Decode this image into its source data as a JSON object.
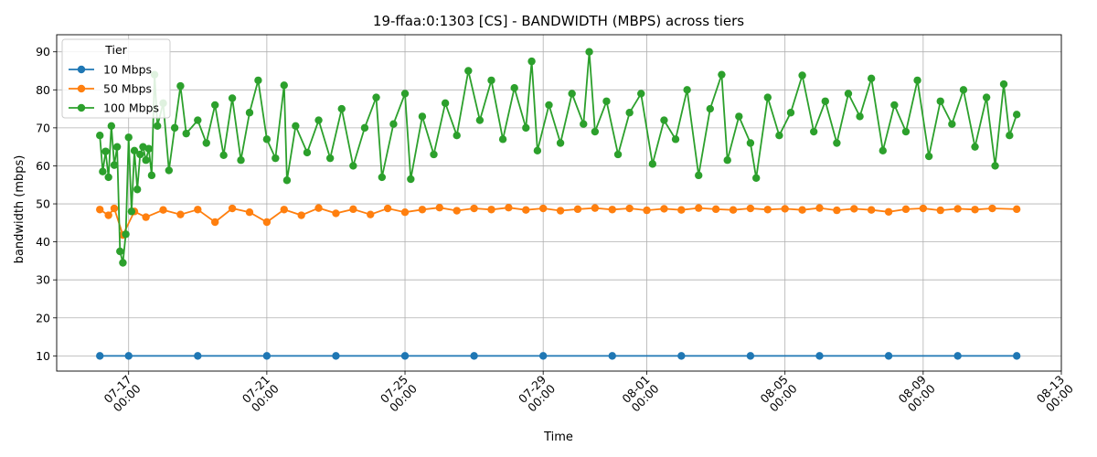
{
  "chart_data": {
    "type": "line",
    "title": "19-ffaa:0:1303 [CS] - BANDWIDTH (MBPS) across tiers",
    "xlabel": "Time",
    "ylabel": "bandwidth (mbps)",
    "ylim": [
      6.0,
      94.5
    ],
    "xlim": [
      "2025-07-14T22:00",
      "2025-08-13T00:00"
    ],
    "y_ticks": [
      10,
      20,
      30,
      40,
      50,
      60,
      70,
      80,
      90
    ],
    "x_ticks": [
      {
        "date": "2025-07-17T00:00",
        "line1": "07-17",
        "line2": "00:00"
      },
      {
        "date": "2025-07-21T00:00",
        "line1": "07-21",
        "line2": "00:00"
      },
      {
        "date": "2025-07-25T00:00",
        "line1": "07-25",
        "line2": "00:00"
      },
      {
        "date": "2025-07-29T00:00",
        "line1": "07-29",
        "line2": "00:00"
      },
      {
        "date": "2025-08-01T00:00",
        "line1": "08-01",
        "line2": "00:00"
      },
      {
        "date": "2025-08-05T00:00",
        "line1": "08-05",
        "line2": "00:00"
      },
      {
        "date": "2025-08-09T00:00",
        "line1": "08-09",
        "line2": "00:00"
      },
      {
        "date": "2025-08-13T00:00",
        "line1": "08-13",
        "line2": "00:00"
      }
    ],
    "grid": true,
    "legend": {
      "title": "Tier",
      "position": "top-left"
    },
    "series": [
      {
        "name": "10 Mbps",
        "color": "#1f77b4",
        "points": [
          [
            "2025-07-16T04:00",
            10.0
          ],
          [
            "2025-07-17T00:00",
            10.0
          ],
          [
            "2025-07-19T00:00",
            10.0
          ],
          [
            "2025-07-21T00:00",
            10.0
          ],
          [
            "2025-07-23T00:00",
            10.0
          ],
          [
            "2025-07-25T00:00",
            10.0
          ],
          [
            "2025-07-27T00:00",
            10.0
          ],
          [
            "2025-07-29T00:00",
            10.0
          ],
          [
            "2025-07-31T00:00",
            10.0
          ],
          [
            "2025-08-02T00:00",
            10.0
          ],
          [
            "2025-08-04T00:00",
            10.0
          ],
          [
            "2025-08-06T00:00",
            10.0
          ],
          [
            "2025-08-08T00:00",
            10.0
          ],
          [
            "2025-08-10T00:00",
            10.0
          ],
          [
            "2025-08-11T17:00",
            10.0
          ]
        ]
      },
      {
        "name": "50 Mbps",
        "color": "#ff7f0e",
        "points": [
          [
            "2025-07-16T04:00",
            48.5
          ],
          [
            "2025-07-16T10:00",
            47.0
          ],
          [
            "2025-07-16T14:00",
            48.8
          ],
          [
            "2025-07-16T20:00",
            41.8
          ],
          [
            "2025-07-17T04:00",
            48.0
          ],
          [
            "2025-07-17T12:00",
            46.5
          ],
          [
            "2025-07-18T00:00",
            48.4
          ],
          [
            "2025-07-18T12:00",
            47.2
          ],
          [
            "2025-07-19T00:00",
            48.5
          ],
          [
            "2025-07-19T12:00",
            45.2
          ],
          [
            "2025-07-20T00:00",
            48.8
          ],
          [
            "2025-07-20T12:00",
            47.8
          ],
          [
            "2025-07-21T00:00",
            45.2
          ],
          [
            "2025-07-21T12:00",
            48.5
          ],
          [
            "2025-07-22T00:00",
            47.0
          ],
          [
            "2025-07-22T12:00",
            48.9
          ],
          [
            "2025-07-23T00:00",
            47.5
          ],
          [
            "2025-07-23T12:00",
            48.6
          ],
          [
            "2025-07-24T00:00",
            47.2
          ],
          [
            "2025-07-24T12:00",
            48.8
          ],
          [
            "2025-07-25T00:00",
            47.8
          ],
          [
            "2025-07-25T12:00",
            48.5
          ],
          [
            "2025-07-26T00:00",
            49.0
          ],
          [
            "2025-07-26T12:00",
            48.2
          ],
          [
            "2025-07-27T00:00",
            48.8
          ],
          [
            "2025-07-27T12:00",
            48.5
          ],
          [
            "2025-07-28T00:00",
            49.0
          ],
          [
            "2025-07-28T12:00",
            48.4
          ],
          [
            "2025-07-29T00:00",
            48.8
          ],
          [
            "2025-07-29T12:00",
            48.2
          ],
          [
            "2025-07-30T00:00",
            48.6
          ],
          [
            "2025-07-30T12:00",
            48.9
          ],
          [
            "2025-07-31T00:00",
            48.5
          ],
          [
            "2025-07-31T12:00",
            48.8
          ],
          [
            "2025-08-01T00:00",
            48.3
          ],
          [
            "2025-08-01T12:00",
            48.7
          ],
          [
            "2025-08-02T00:00",
            48.4
          ],
          [
            "2025-08-02T12:00",
            48.9
          ],
          [
            "2025-08-03T00:00",
            48.6
          ],
          [
            "2025-08-03T12:00",
            48.4
          ],
          [
            "2025-08-04T00:00",
            48.8
          ],
          [
            "2025-08-04T12:00",
            48.5
          ],
          [
            "2025-08-05T00:00",
            48.7
          ],
          [
            "2025-08-05T12:00",
            48.4
          ],
          [
            "2025-08-06T00:00",
            48.9
          ],
          [
            "2025-08-06T12:00",
            48.3
          ],
          [
            "2025-08-07T00:00",
            48.7
          ],
          [
            "2025-08-07T12:00",
            48.4
          ],
          [
            "2025-08-08T00:00",
            47.9
          ],
          [
            "2025-08-08T12:00",
            48.6
          ],
          [
            "2025-08-09T00:00",
            48.8
          ],
          [
            "2025-08-09T12:00",
            48.3
          ],
          [
            "2025-08-10T00:00",
            48.7
          ],
          [
            "2025-08-10T12:00",
            48.5
          ],
          [
            "2025-08-11T00:00",
            48.8
          ],
          [
            "2025-08-11T17:00",
            48.6
          ]
        ]
      },
      {
        "name": "100 Mbps",
        "color": "#2ca02c",
        "points": [
          [
            "2025-07-16T04:00",
            68.0
          ],
          [
            "2025-07-16T06:00",
            58.5
          ],
          [
            "2025-07-16T08:00",
            63.8
          ],
          [
            "2025-07-16T10:00",
            57.0
          ],
          [
            "2025-07-16T12:00",
            70.5
          ],
          [
            "2025-07-16T14:00",
            60.2
          ],
          [
            "2025-07-16T16:00",
            65.0
          ],
          [
            "2025-07-16T18:00",
            37.5
          ],
          [
            "2025-07-16T20:00",
            34.5
          ],
          [
            "2025-07-16T22:00",
            42.0
          ],
          [
            "2025-07-17T00:00",
            67.5
          ],
          [
            "2025-07-17T02:00",
            48.0
          ],
          [
            "2025-07-17T04:00",
            64.0
          ],
          [
            "2025-07-17T06:00",
            53.8
          ],
          [
            "2025-07-17T08:00",
            63.0
          ],
          [
            "2025-07-17T10:00",
            65.0
          ],
          [
            "2025-07-17T12:00",
            61.5
          ],
          [
            "2025-07-17T14:00",
            64.5
          ],
          [
            "2025-07-17T16:00",
            57.5
          ],
          [
            "2025-07-17T18:00",
            84.0
          ],
          [
            "2025-07-17T20:00",
            70.5
          ],
          [
            "2025-07-18T00:00",
            76.5
          ],
          [
            "2025-07-18T04:00",
            58.8
          ],
          [
            "2025-07-18T08:00",
            70.0
          ],
          [
            "2025-07-18T12:00",
            81.0
          ],
          [
            "2025-07-18T16:00",
            68.5
          ],
          [
            "2025-07-19T00:00",
            72.0
          ],
          [
            "2025-07-19T06:00",
            66.0
          ],
          [
            "2025-07-19T12:00",
            76.0
          ],
          [
            "2025-07-19T18:00",
            62.8
          ],
          [
            "2025-07-20T00:00",
            77.8
          ],
          [
            "2025-07-20T06:00",
            61.5
          ],
          [
            "2025-07-20T12:00",
            74.0
          ],
          [
            "2025-07-20T18:00",
            82.5
          ],
          [
            "2025-07-21T00:00",
            67.0
          ],
          [
            "2025-07-21T06:00",
            62.0
          ],
          [
            "2025-07-21T12:00",
            81.2
          ],
          [
            "2025-07-21T14:00",
            56.2
          ],
          [
            "2025-07-21T20:00",
            70.5
          ],
          [
            "2025-07-22T04:00",
            63.5
          ],
          [
            "2025-07-22T12:00",
            72.0
          ],
          [
            "2025-07-22T20:00",
            62.0
          ],
          [
            "2025-07-23T04:00",
            75.0
          ],
          [
            "2025-07-23T12:00",
            60.0
          ],
          [
            "2025-07-23T20:00",
            70.0
          ],
          [
            "2025-07-24T04:00",
            78.0
          ],
          [
            "2025-07-24T08:00",
            57.0
          ],
          [
            "2025-07-24T16:00",
            71.0
          ],
          [
            "2025-07-25T00:00",
            79.0
          ],
          [
            "2025-07-25T04:00",
            56.5
          ],
          [
            "2025-07-25T12:00",
            73.0
          ],
          [
            "2025-07-25T20:00",
            63.0
          ],
          [
            "2025-07-26T04:00",
            76.5
          ],
          [
            "2025-07-26T12:00",
            68.0
          ],
          [
            "2025-07-26T20:00",
            85.0
          ],
          [
            "2025-07-27T04:00",
            72.0
          ],
          [
            "2025-07-27T12:00",
            82.5
          ],
          [
            "2025-07-27T20:00",
            67.0
          ],
          [
            "2025-07-28T04:00",
            80.5
          ],
          [
            "2025-07-28T12:00",
            70.0
          ],
          [
            "2025-07-28T16:00",
            87.5
          ],
          [
            "2025-07-28T20:00",
            64.0
          ],
          [
            "2025-07-29T04:00",
            76.0
          ],
          [
            "2025-07-29T12:00",
            66.0
          ],
          [
            "2025-07-29T20:00",
            79.0
          ],
          [
            "2025-07-30T04:00",
            71.0
          ],
          [
            "2025-07-30T08:00",
            90.0
          ],
          [
            "2025-07-30T12:00",
            69.0
          ],
          [
            "2025-07-30T20:00",
            77.0
          ],
          [
            "2025-07-31T04:00",
            63.0
          ],
          [
            "2025-07-31T12:00",
            74.0
          ],
          [
            "2025-07-31T20:00",
            79.0
          ],
          [
            "2025-08-01T04:00",
            60.5
          ],
          [
            "2025-08-01T12:00",
            72.0
          ],
          [
            "2025-08-01T20:00",
            67.0
          ],
          [
            "2025-08-02T04:00",
            80.0
          ],
          [
            "2025-08-02T12:00",
            57.5
          ],
          [
            "2025-08-02T20:00",
            75.0
          ],
          [
            "2025-08-03T04:00",
            84.0
          ],
          [
            "2025-08-03T08:00",
            61.5
          ],
          [
            "2025-08-03T16:00",
            73.0
          ],
          [
            "2025-08-04T00:00",
            66.0
          ],
          [
            "2025-08-04T04:00",
            56.8
          ],
          [
            "2025-08-04T12:00",
            78.0
          ],
          [
            "2025-08-04T20:00",
            68.0
          ],
          [
            "2025-08-05T04:00",
            74.0
          ],
          [
            "2025-08-05T12:00",
            83.8
          ],
          [
            "2025-08-05T20:00",
            69.0
          ],
          [
            "2025-08-06T04:00",
            77.0
          ],
          [
            "2025-08-06T12:00",
            66.0
          ],
          [
            "2025-08-06T20:00",
            79.0
          ],
          [
            "2025-08-07T04:00",
            73.0
          ],
          [
            "2025-08-07T12:00",
            83.0
          ],
          [
            "2025-08-07T20:00",
            64.0
          ],
          [
            "2025-08-08T04:00",
            76.0
          ],
          [
            "2025-08-08T12:00",
            69.0
          ],
          [
            "2025-08-08T20:00",
            82.5
          ],
          [
            "2025-08-09T04:00",
            62.5
          ],
          [
            "2025-08-09T12:00",
            77.0
          ],
          [
            "2025-08-09T20:00",
            71.0
          ],
          [
            "2025-08-10T04:00",
            80.0
          ],
          [
            "2025-08-10T12:00",
            65.0
          ],
          [
            "2025-08-10T20:00",
            78.0
          ],
          [
            "2025-08-11T02:00",
            60.0
          ],
          [
            "2025-08-11T08:00",
            81.5
          ],
          [
            "2025-08-11T12:00",
            68.0
          ],
          [
            "2025-08-11T17:00",
            73.5
          ]
        ]
      }
    ]
  }
}
